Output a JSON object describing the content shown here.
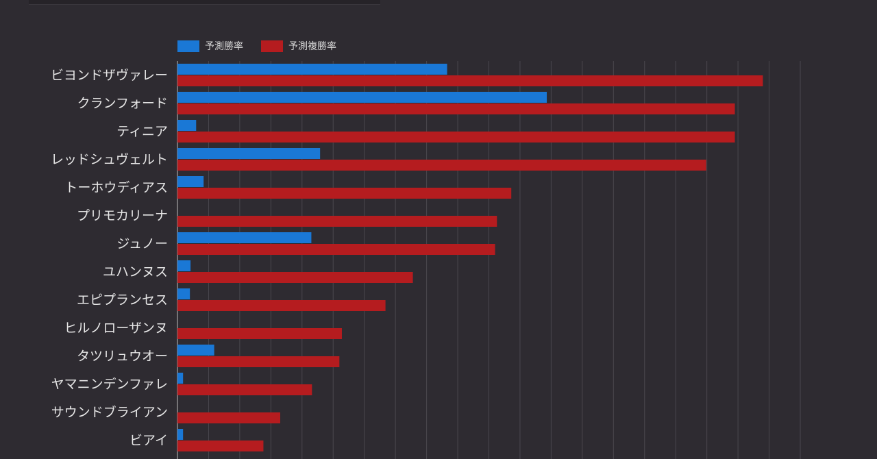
{
  "chart_data": {
    "type": "bar",
    "orientation": "horizontal",
    "title": "",
    "xlabel": "",
    "ylabel": "",
    "xlim": [
      0,
      100
    ],
    "grid": true,
    "legend_placement": "top-left",
    "categories": [
      "ビヨンドザヴァレー",
      "クランフォード",
      "ティニア",
      "レッドシュヴェルト",
      "トーホウディアス",
      "プリモカリーナ",
      "ジュノー",
      "ユハンヌス",
      "エピプランセス",
      "ヒルノローザンヌ",
      "タツリュウオー",
      "ヤマニンデンファレ",
      "サウンドブライアン",
      "ビアイ"
    ],
    "series": [
      {
        "name": "予測勝率",
        "color": "#1a78d6",
        "values": [
          43.3,
          59.3,
          3.0,
          22.9,
          4.2,
          0,
          21.5,
          2.1,
          2.0,
          0,
          5.9,
          0.9,
          0,
          0.9
        ]
      },
      {
        "name": "予測複勝率",
        "color": "#b51c1f",
        "values": [
          94.0,
          89.5,
          89.5,
          84.9,
          53.6,
          51.3,
          51.0,
          37.8,
          33.4,
          26.4,
          26.0,
          21.6,
          16.5,
          13.8
        ]
      }
    ]
  }
}
